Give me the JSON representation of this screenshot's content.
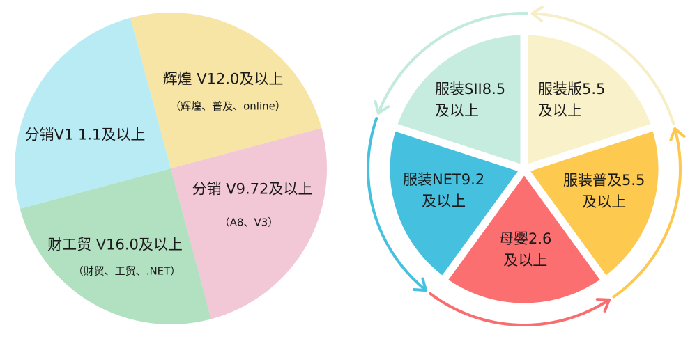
{
  "left_pie": {
    "slices": [
      {
        "title": "辉煌 V12.0及以上",
        "subtitle": "（辉煌、普及、online）",
        "color": "#f7e5a6"
      },
      {
        "title": "分销 V9.72及以上",
        "subtitle": "（A8、V3）",
        "color": "#f2c7d6"
      },
      {
        "title": "财工贸 V16.0及以上",
        "subtitle": "（财贸、工贸、.NET）",
        "color": "#b1e1c0"
      },
      {
        "title": "分销V1 1.1及以上",
        "subtitle": "",
        "color": "#b8ebf4"
      }
    ]
  },
  "right_cycle": {
    "slices": [
      {
        "line1": "服装版5.5",
        "line2": "及以上",
        "color": "#f9f1c9",
        "ring_color": "#f6eec6"
      },
      {
        "line1": "服装普及5.5",
        "line2": "及以上",
        "color": "#fdc94f",
        "ring_color": "#fcc850"
      },
      {
        "line1": "母婴2.6",
        "line2": "及以上",
        "color": "#fb6f70",
        "ring_color": "#f86d6f"
      },
      {
        "line1": "服装NET9.2",
        "line2": "及以上",
        "color": "#45c1df",
        "ring_color": "#45c1df"
      },
      {
        "line1": "服装SII8.5",
        "line2": "及以上",
        "color": "#c6ecdf",
        "ring_color": "#c2eadd"
      }
    ],
    "direction": "counterclockwise"
  }
}
